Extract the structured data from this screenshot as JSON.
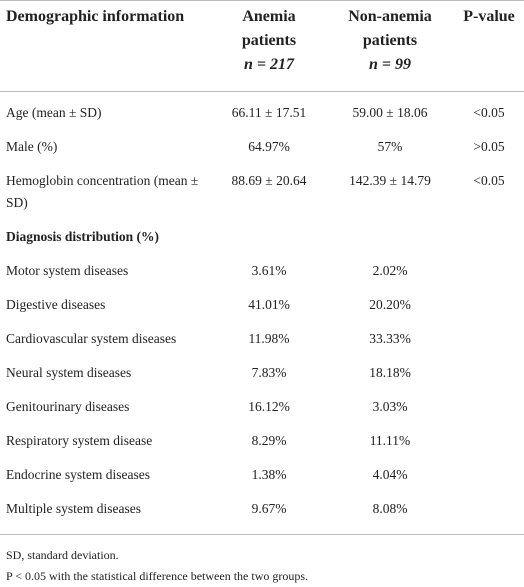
{
  "table": {
    "columns": [
      {
        "label": "Demographic information"
      },
      {
        "label": "Anemia patients",
        "sub": "n = 217"
      },
      {
        "label": "Non-anemia patients",
        "sub": "n = 99"
      },
      {
        "label": "P-value"
      }
    ],
    "rows": [
      [
        "Age (mean ± SD)",
        "66.11 ± 17.51",
        "59.00 ± 18.06",
        "<0.05"
      ],
      [
        "Male (%)",
        "64.97%",
        "57%",
        ">0.05"
      ],
      [
        "Hemoglobin concentration (mean ± SD)",
        "88.69 ± 20.64",
        "142.39 ± 14.79",
        "<0.05"
      ],
      [
        "Diagnosis distribution (%)"
      ],
      [
        "Motor system diseases",
        "3.61%",
        "2.02%"
      ],
      [
        "Digestive diseases",
        "41.01%",
        "20.20%"
      ],
      [
        "Cardiovascular system diseases",
        "11.98%",
        "33.33%"
      ],
      [
        "Neural system diseases",
        "7.83%",
        "18.18%"
      ],
      [
        "Genitourinary diseases",
        "16.12%",
        "3.03%"
      ],
      [
        "Respiratory system disease",
        "8.29%",
        "11.11%"
      ],
      [
        "Endocrine system diseases",
        "1.38%",
        "4.04%"
      ],
      [
        "Multiple system diseases",
        "9.67%",
        "8.08%"
      ]
    ]
  },
  "footnotes": [
    "SD, standard deviation.",
    "P < 0.05 with the statistical difference between the two groups."
  ]
}
